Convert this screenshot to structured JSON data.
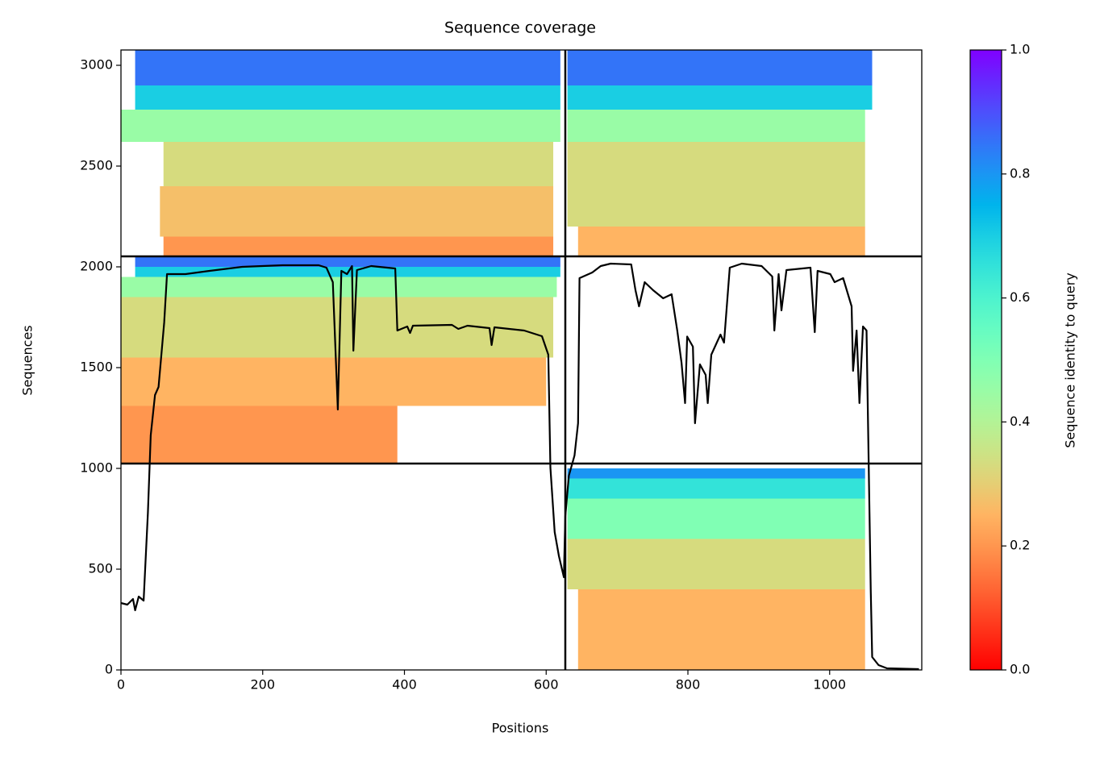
{
  "chart_data": {
    "type": "coverage",
    "title": "Sequence coverage",
    "xlabel": "Positions",
    "ylabel": "Sequences",
    "xlim": [
      0,
      1130
    ],
    "ylim": [
      0,
      3076
    ],
    "xticks": [
      0,
      200,
      400,
      600,
      800,
      1000
    ],
    "yticks": [
      0,
      500,
      1000,
      1500,
      2000,
      2500,
      3000
    ],
    "colormap": "rainbow_r",
    "bands": [
      {
        "x": [
          0,
          390
        ],
        "y": [
          1024,
          1310
        ],
        "identity": 0.2
      },
      {
        "x": [
          0,
          600
        ],
        "y": [
          1310,
          1550
        ],
        "identity": 0.25
      },
      {
        "x": [
          0,
          610
        ],
        "y": [
          1550,
          1850
        ],
        "identity": 0.33
      },
      {
        "x": [
          0,
          615
        ],
        "y": [
          1850,
          1950
        ],
        "identity": 0.45
      },
      {
        "x": [
          20,
          620
        ],
        "y": [
          1950,
          2000
        ],
        "identity": 0.7
      },
      {
        "x": [
          20,
          620
        ],
        "y": [
          2000,
          2052
        ],
        "identity": 0.85
      },
      {
        "x": [
          60,
          610
        ],
        "y": [
          2052,
          2150
        ],
        "identity": 0.2
      },
      {
        "x": [
          55,
          610
        ],
        "y": [
          2150,
          2400
        ],
        "identity": 0.27
      },
      {
        "x": [
          60,
          610
        ],
        "y": [
          2400,
          2620
        ],
        "identity": 0.33
      },
      {
        "x": [
          0,
          620
        ],
        "y": [
          2620,
          2780
        ],
        "identity": 0.45
      },
      {
        "x": [
          20,
          620
        ],
        "y": [
          2780,
          2900
        ],
        "identity": 0.7
      },
      {
        "x": [
          20,
          620
        ],
        "y": [
          2900,
          3076
        ],
        "identity": 0.85
      },
      {
        "x": [
          645,
          1050
        ],
        "y": [
          0,
          400
        ],
        "identity": 0.25
      },
      {
        "x": [
          630,
          1050
        ],
        "y": [
          400,
          650
        ],
        "identity": 0.33
      },
      {
        "x": [
          630,
          1050
        ],
        "y": [
          650,
          850
        ],
        "identity": 0.5
      },
      {
        "x": [
          630,
          1050
        ],
        "y": [
          850,
          950
        ],
        "identity": 0.65
      },
      {
        "x": [
          630,
          1050
        ],
        "y": [
          950,
          1000
        ],
        "identity": 0.8
      },
      {
        "x": [
          645,
          1050
        ],
        "y": [
          2052,
          2200
        ],
        "identity": 0.25
      },
      {
        "x": [
          630,
          1050
        ],
        "y": [
          2200,
          2620
        ],
        "identity": 0.33
      },
      {
        "x": [
          630,
          1050
        ],
        "y": [
          2620,
          2780
        ],
        "identity": 0.45
      },
      {
        "x": [
          630,
          1060
        ],
        "y": [
          2780,
          2900
        ],
        "identity": 0.7
      },
      {
        "x": [
          630,
          1060
        ],
        "y": [
          2900,
          3076
        ],
        "identity": 0.85
      }
    ],
    "x_dividers": [
      627
    ],
    "y_dividers": [
      1024,
      2052
    ],
    "coverage": {
      "color": "#000000",
      "x": [
        0,
        9,
        17,
        20,
        25,
        32,
        38,
        42,
        48,
        53,
        57,
        61,
        65,
        91,
        125,
        171,
        228,
        279,
        290,
        299,
        306,
        311,
        319,
        326,
        328,
        333,
        353,
        387,
        390,
        404,
        408,
        412,
        467,
        476,
        489,
        520,
        523,
        527,
        569,
        594,
        603,
        606,
        612,
        618,
        625,
        627,
        632,
        640,
        645,
        647,
        665,
        677,
        691,
        720,
        726,
        731,
        739,
        751,
        765,
        777,
        785,
        791,
        796,
        799,
        807,
        810,
        817,
        825,
        828,
        833,
        846,
        851,
        859,
        876,
        904,
        919,
        922,
        928,
        932,
        939,
        973,
        979,
        983,
        1001,
        1007,
        1019,
        1031,
        1033,
        1038,
        1042,
        1047,
        1052,
        1058,
        1060,
        1069,
        1081,
        1126
      ],
      "values": [
        332,
        324,
        352,
        296,
        364,
        344,
        780,
        1164,
        1364,
        1404,
        1564,
        1724,
        1964,
        1964,
        1980,
        2000,
        2008,
        2008,
        1996,
        1924,
        1292,
        1980,
        1964,
        2004,
        1584,
        1984,
        2004,
        1992,
        1684,
        1704,
        1672,
        1708,
        1712,
        1692,
        1708,
        1696,
        1612,
        1700,
        1684,
        1656,
        1564,
        1004,
        684,
        564,
        460,
        764,
        964,
        1064,
        1224,
        1944,
        1972,
        2004,
        2016,
        2012,
        1884,
        1804,
        1924,
        1884,
        1844,
        1864,
        1684,
        1524,
        1324,
        1654,
        1604,
        1224,
        1516,
        1464,
        1324,
        1564,
        1664,
        1624,
        1996,
        2016,
        2004,
        1952,
        1684,
        1964,
        1784,
        1984,
        1996,
        1676,
        1980,
        1964,
        1924,
        1944,
        1804,
        1484,
        1684,
        1324,
        1704,
        1684,
        400,
        64,
        24,
        8,
        4
      ]
    },
    "colorbar": {
      "label": "Sequence identity to query",
      "lim": [
        0,
        1
      ],
      "ticks": [
        {
          "value": 0,
          "label": "0.0"
        },
        {
          "value": 0.2,
          "label": "0.2"
        },
        {
          "value": 0.4,
          "label": "0.4"
        },
        {
          "value": 0.6,
          "label": "0.6"
        },
        {
          "value": 0.8,
          "label": "0.8"
        },
        {
          "value": 1,
          "label": "1.0"
        }
      ]
    }
  }
}
